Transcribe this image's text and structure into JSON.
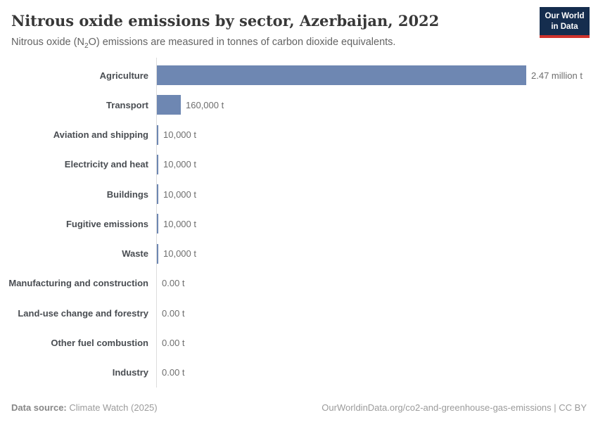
{
  "header": {
    "title": "Nitrous oxide emissions by sector, Azerbaijan, 2022",
    "subtitle": {
      "pre": "Nitrous oxide (N",
      "sub": "2",
      "post": "O) emissions are measured in tonnes of carbon dioxide equivalents."
    },
    "logo": {
      "line1": "Our World",
      "line2": "in Data"
    }
  },
  "chart_data": {
    "type": "bar",
    "orientation": "horizontal",
    "title": "Nitrous oxide emissions by sector, Azerbaijan, 2022",
    "xlabel": "",
    "ylabel": "",
    "unit": "tonnes of carbon dioxide equivalents",
    "categories": [
      "Agriculture",
      "Transport",
      "Aviation and shipping",
      "Electricity and heat",
      "Buildings",
      "Fugitive emissions",
      "Waste",
      "Manufacturing and construction",
      "Land-use change and forestry",
      "Other fuel combustion",
      "Industry"
    ],
    "values": [
      2470000,
      160000,
      10000,
      10000,
      10000,
      10000,
      10000,
      0,
      0,
      0,
      0
    ],
    "value_labels": [
      "2.47 million t",
      "160,000 t",
      "10,000 t",
      "10,000 t",
      "10,000 t",
      "10,000 t",
      "10,000 t",
      "0.00 t",
      "0.00 t",
      "0.00 t",
      "0.00 t"
    ],
    "xlim": [
      0,
      2470000
    ],
    "bar_color": "#6e87b2",
    "axis_color": "#dcdcdc",
    "grid": false,
    "legend": false
  },
  "footer": {
    "datasource_label": "Data source:",
    "datasource_value": "Climate Watch (2025)",
    "credit": "OurWorldinData.org/co2-and-greenhouse-gas-emissions | CC BY"
  }
}
